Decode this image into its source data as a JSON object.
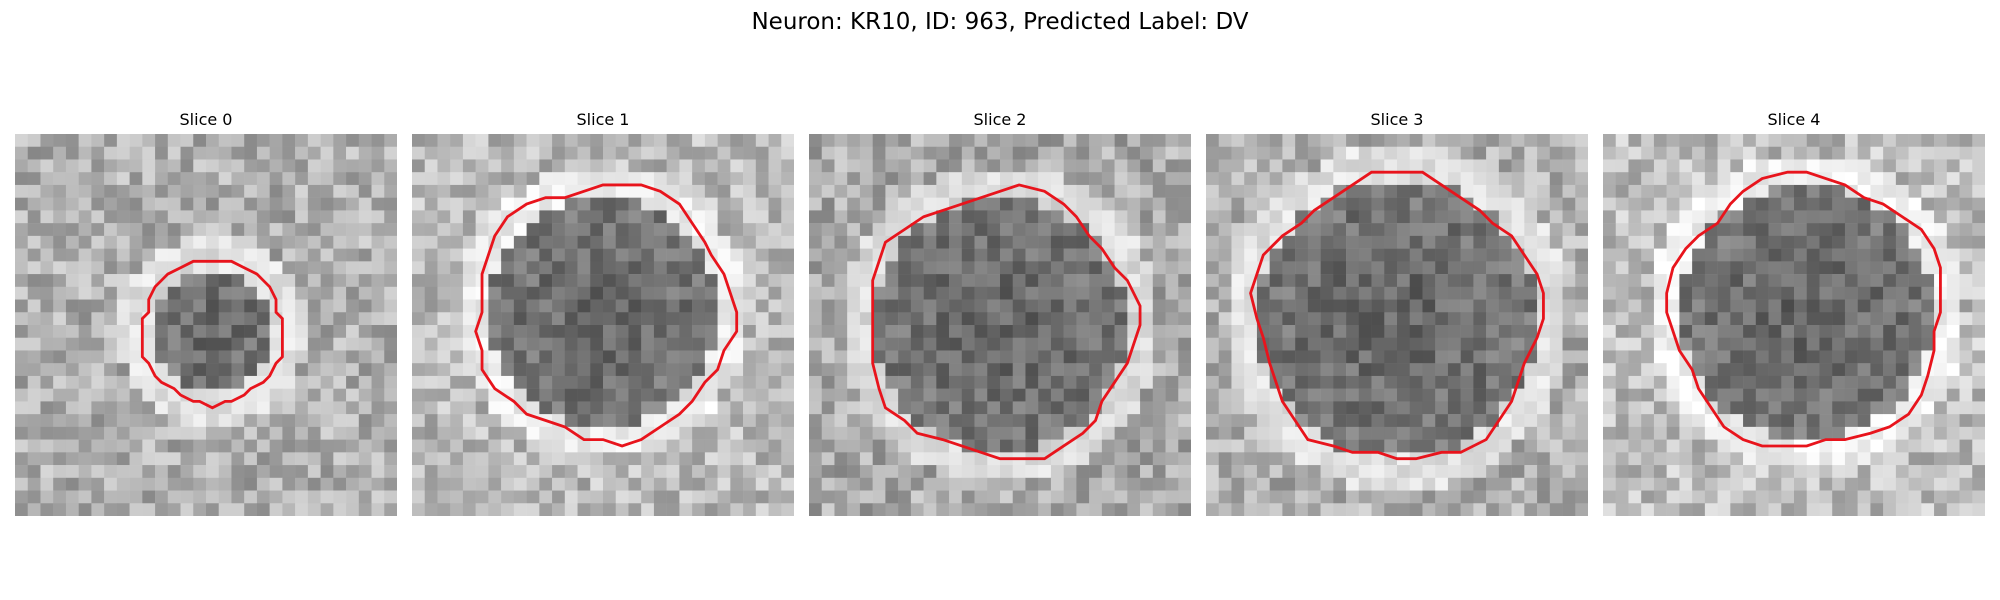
{
  "figure": {
    "title": "Neuron: KR10, ID: 963, Predicted Label: DV"
  },
  "slices": [
    {
      "label": "Slice 0"
    },
    {
      "label": "Slice 1"
    },
    {
      "label": "Slice 2"
    },
    {
      "label": "Slice 3"
    },
    {
      "label": "Slice 4"
    }
  ],
  "colors": {
    "contour": "#e8141c",
    "background": "#ffffff"
  }
}
